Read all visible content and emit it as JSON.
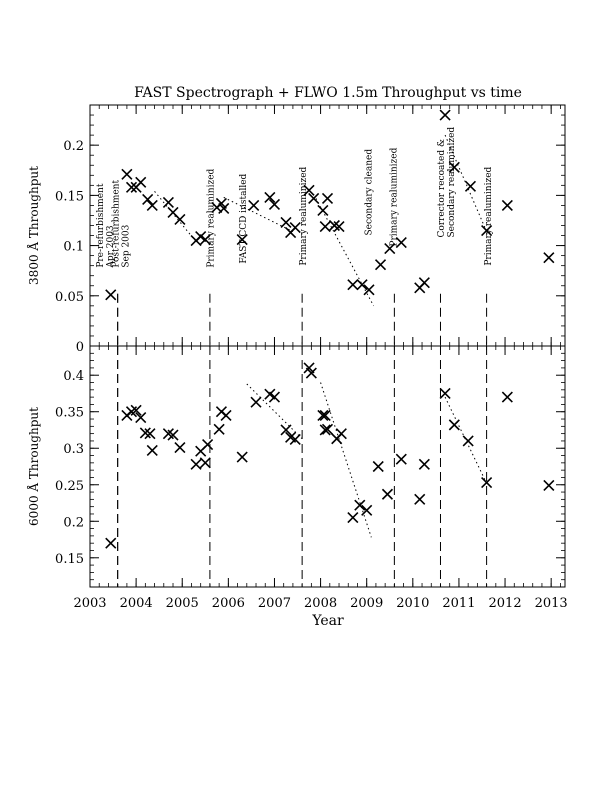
{
  "chart_data": {
    "type": "scatter",
    "title": "FAST Spectrograph + FLWO 1.5m Throughput vs time",
    "xlabel": "Year",
    "xlim": [
      2003,
      2013.3
    ],
    "xticks": [
      "2003",
      "2004",
      "2005",
      "2006",
      "2007",
      "2008",
      "2009",
      "2010",
      "2011",
      "2012",
      "2013"
    ],
    "grid": false,
    "marker": "x",
    "events": [
      {
        "x": 2003.6,
        "label": "Pre-refurbishment\nApr 2003"
      },
      {
        "x": 2003.6,
        "label": "Post-refurbishment\nSep 2003"
      },
      {
        "x": 2005.6,
        "label": "Primary realuminized"
      },
      {
        "x": 2006.4,
        "label": "FAST CCD installed",
        "line": false
      },
      {
        "x": 2007.6,
        "label": "Primary realuminized"
      },
      {
        "x": 2009.0,
        "label": "Secondary cleaned",
        "line": false
      },
      {
        "x": 2009.6,
        "label": "Primary realuminized"
      },
      {
        "x": 2010.6,
        "label": "Corrector recoated &\nSecondary realuminized"
      },
      {
        "x": 2011.6,
        "label": "Primary realuminized"
      }
    ],
    "panels": [
      {
        "name": "top",
        "ylabel": "3800 Å Throughput",
        "ylim": [
          0,
          0.24
        ],
        "yticks": [
          "0",
          "0.05",
          "0.1",
          "0.15",
          "0.2"
        ],
        "points": [
          [
            2003.45,
            0.051
          ],
          [
            2003.8,
            0.171
          ],
          [
            2003.9,
            0.158
          ],
          [
            2004.0,
            0.158
          ],
          [
            2004.1,
            0.163
          ],
          [
            2004.25,
            0.146
          ],
          [
            2004.35,
            0.14
          ],
          [
            2004.7,
            0.143
          ],
          [
            2004.8,
            0.133
          ],
          [
            2004.95,
            0.126
          ],
          [
            2005.3,
            0.105
          ],
          [
            2005.4,
            0.109
          ],
          [
            2005.5,
            0.106
          ],
          [
            2005.75,
            0.138
          ],
          [
            2005.85,
            0.142
          ],
          [
            2005.9,
            0.137
          ],
          [
            2006.3,
            0.106
          ],
          [
            2006.55,
            0.14
          ],
          [
            2006.9,
            0.148
          ],
          [
            2007.0,
            0.141
          ],
          [
            2007.25,
            0.123
          ],
          [
            2007.35,
            0.113
          ],
          [
            2007.45,
            0.118
          ],
          [
            2007.75,
            0.155
          ],
          [
            2007.85,
            0.147
          ],
          [
            2008.05,
            0.135
          ],
          [
            2008.1,
            0.119
          ],
          [
            2008.15,
            0.147
          ],
          [
            2008.3,
            0.12
          ],
          [
            2008.4,
            0.119
          ],
          [
            2008.7,
            0.061
          ],
          [
            2008.9,
            0.061
          ],
          [
            2009.05,
            0.056
          ],
          [
            2009.3,
            0.081
          ],
          [
            2009.5,
            0.097
          ],
          [
            2009.75,
            0.103
          ],
          [
            2010.15,
            0.058
          ],
          [
            2010.25,
            0.063
          ],
          [
            2010.7,
            0.23
          ],
          [
            2010.9,
            0.178
          ],
          [
            2011.25,
            0.159
          ],
          [
            2011.6,
            0.115
          ],
          [
            2012.05,
            0.14
          ],
          [
            2012.95,
            0.088
          ]
        ],
        "trends": [
          [
            [
              2004.4,
              0.154
            ],
            [
              2005.3,
              0.104
            ]
          ],
          [
            [
              2005.9,
              0.148
            ],
            [
              2007.4,
              0.114
            ]
          ],
          [
            [
              2007.9,
              0.147
            ],
            [
              2009.15,
              0.04
            ]
          ],
          [
            [
              2010.7,
              0.21
            ],
            [
              2011.6,
              0.114
            ]
          ]
        ]
      },
      {
        "name": "bottom",
        "ylabel": "6000 Å Throughput",
        "ylim": [
          0.11,
          0.44
        ],
        "yticks": [
          "0.15",
          "0.2",
          "0.25",
          "0.3",
          "0.35",
          "0.4"
        ],
        "points": [
          [
            2003.45,
            0.17
          ],
          [
            2003.8,
            0.345
          ],
          [
            2003.9,
            0.35
          ],
          [
            2004.0,
            0.352
          ],
          [
            2004.1,
            0.342
          ],
          [
            2004.2,
            0.321
          ],
          [
            2004.3,
            0.32
          ],
          [
            2004.35,
            0.297
          ],
          [
            2004.7,
            0.32
          ],
          [
            2004.8,
            0.318
          ],
          [
            2004.95,
            0.301
          ],
          [
            2005.3,
            0.278
          ],
          [
            2005.4,
            0.296
          ],
          [
            2005.5,
            0.28
          ],
          [
            2005.55,
            0.305
          ],
          [
            2005.8,
            0.326
          ],
          [
            2005.85,
            0.35
          ],
          [
            2005.95,
            0.345
          ],
          [
            2006.3,
            0.288
          ],
          [
            2006.6,
            0.363
          ],
          [
            2006.9,
            0.374
          ],
          [
            2007.0,
            0.37
          ],
          [
            2007.25,
            0.325
          ],
          [
            2007.35,
            0.315
          ],
          [
            2007.45,
            0.312
          ],
          [
            2007.75,
            0.41
          ],
          [
            2007.8,
            0.403
          ],
          [
            2008.05,
            0.345
          ],
          [
            2008.1,
            0.345
          ],
          [
            2008.1,
            0.325
          ],
          [
            2008.15,
            0.326
          ],
          [
            2008.35,
            0.313
          ],
          [
            2008.45,
            0.32
          ],
          [
            2008.7,
            0.205
          ],
          [
            2008.85,
            0.222
          ],
          [
            2009.0,
            0.215
          ],
          [
            2009.25,
            0.275
          ],
          [
            2009.45,
            0.237
          ],
          [
            2009.75,
            0.285
          ],
          [
            2010.15,
            0.23
          ],
          [
            2010.25,
            0.278
          ],
          [
            2010.7,
            0.375
          ],
          [
            2010.9,
            0.332
          ],
          [
            2011.2,
            0.31
          ],
          [
            2011.6,
            0.253
          ],
          [
            2012.05,
            0.37
          ],
          [
            2012.95,
            0.249
          ]
        ],
        "trends": [
          [
            [
              2006.4,
              0.388
            ],
            [
              2007.6,
              0.313
            ]
          ],
          [
            [
              2008.0,
              0.39
            ],
            [
              2009.1,
              0.178
            ]
          ],
          [
            [
              2010.7,
              0.37
            ],
            [
              2011.6,
              0.252
            ]
          ]
        ]
      }
    ]
  }
}
